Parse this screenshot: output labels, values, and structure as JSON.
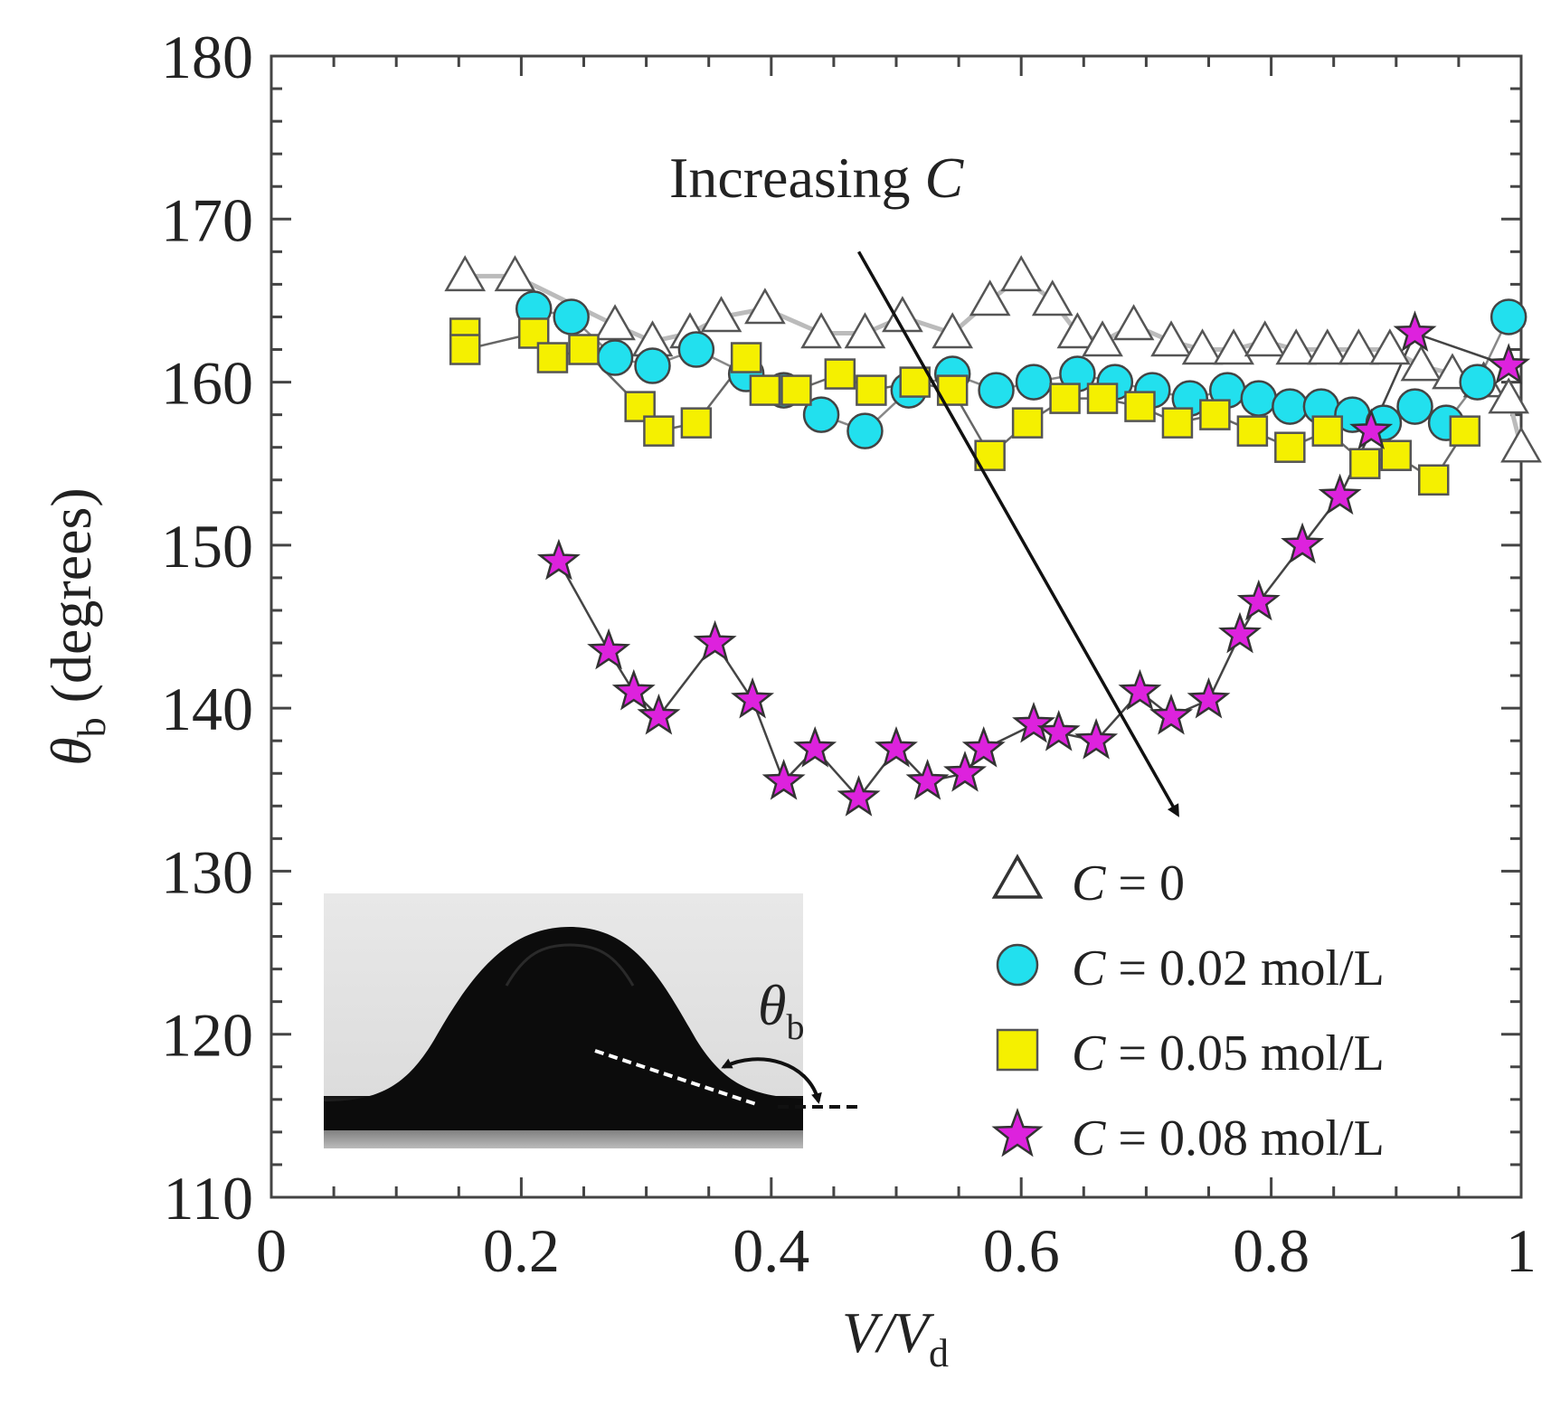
{
  "chart_data": {
    "type": "scatter",
    "xlabel_main": "V/V",
    "xlabel_sub": "d",
    "ylabel_symbol": "θ",
    "ylabel_sub": "b",
    "ylabel_rest": " (degrees)",
    "xlim": [
      0,
      1
    ],
    "ylim": [
      110,
      180
    ],
    "xticks": [
      0,
      0.2,
      0.4,
      0.6,
      0.8,
      1
    ],
    "xtick_labels": [
      "0",
      "0.2",
      "0.4",
      "0.6",
      "0.8",
      "1"
    ],
    "yticks": [
      110,
      120,
      130,
      140,
      150,
      160,
      170,
      180
    ],
    "ytick_labels": [
      "110",
      "120",
      "130",
      "140",
      "150",
      "160",
      "170",
      "180"
    ],
    "annotation": {
      "text": "Increasing ",
      "var": "C",
      "arrow_from": [
        0.47,
        168
      ],
      "arrow_to": [
        0.725,
        133.5
      ]
    },
    "inset": {
      "description": "droplet photograph with contact angle",
      "label_symbol": "θ",
      "label_sub": "b"
    },
    "series": [
      {
        "name": "C = 0",
        "legend_var": "C",
        "legend_rest": " = 0",
        "marker": "triangle",
        "color": "#ffffff",
        "stroke": "#555555",
        "x": [
          0.155,
          0.195,
          0.275,
          0.305,
          0.335,
          0.36,
          0.395,
          0.44,
          0.475,
          0.505,
          0.545,
          0.575,
          0.6,
          0.625,
          0.645,
          0.665,
          0.69,
          0.72,
          0.745,
          0.77,
          0.795,
          0.82,
          0.845,
          0.87,
          0.895,
          0.92,
          0.945,
          0.97,
          0.99,
          1.0
        ],
        "y": [
          166.5,
          166.5,
          163.5,
          162.5,
          163,
          164,
          164.5,
          163,
          163,
          164,
          163,
          165,
          166.5,
          165,
          163,
          162.5,
          163.5,
          162.5,
          162,
          162,
          162.5,
          162,
          162,
          162,
          162,
          161,
          160.5,
          160,
          159,
          156
        ]
      },
      {
        "name": "C = 0.02 mol/L",
        "legend_var": "C",
        "legend_rest": " = 0.02 mol/L",
        "marker": "circle",
        "color": "#22e0ee",
        "stroke": "#444444",
        "x": [
          0.21,
          0.24,
          0.275,
          0.305,
          0.34,
          0.38,
          0.41,
          0.44,
          0.475,
          0.51,
          0.545,
          0.58,
          0.61,
          0.645,
          0.675,
          0.705,
          0.735,
          0.765,
          0.79,
          0.815,
          0.84,
          0.865,
          0.89,
          0.915,
          0.94,
          0.965,
          0.99
        ],
        "y": [
          164.5,
          164,
          161.5,
          161,
          162,
          160.5,
          159.5,
          158,
          157,
          159.5,
          160.5,
          159.5,
          160,
          160.5,
          160,
          159.5,
          159,
          159.5,
          159,
          158.5,
          158.5,
          158,
          157.5,
          158.5,
          157.5,
          160,
          164
        ]
      },
      {
        "name": "C = 0.05 mol/L",
        "legend_var": "C",
        "legend_rest": " = 0.05 mol/L",
        "marker": "square",
        "color": "#f5f000",
        "stroke": "#555555",
        "x": [
          0.155,
          0.155,
          0.21,
          0.225,
          0.25,
          0.295,
          0.31,
          0.34,
          0.38,
          0.395,
          0.42,
          0.455,
          0.48,
          0.515,
          0.545,
          0.575,
          0.605,
          0.635,
          0.665,
          0.695,
          0.725,
          0.755,
          0.785,
          0.815,
          0.845,
          0.875,
          0.9,
          0.93,
          0.955
        ],
        "y": [
          163,
          162,
          163,
          161.5,
          162,
          158.5,
          157,
          157.5,
          161.5,
          159.5,
          159.5,
          160.5,
          159.5,
          160,
          159.5,
          155.5,
          157.5,
          159,
          159,
          158.5,
          157.5,
          158,
          157,
          156,
          157,
          155,
          155.5,
          154,
          157
        ]
      },
      {
        "name": "C = 0.08 mol/L",
        "legend_var": "C",
        "legend_rest": " = 0.08 mol/L",
        "marker": "star",
        "color": "#dd22dd",
        "stroke": "#333333",
        "x": [
          0.23,
          0.27,
          0.29,
          0.31,
          0.355,
          0.385,
          0.41,
          0.435,
          0.47,
          0.5,
          0.525,
          0.555,
          0.57,
          0.61,
          0.63,
          0.66,
          0.695,
          0.72,
          0.75,
          0.775,
          0.79,
          0.825,
          0.855,
          0.88,
          0.915,
          0.99
        ],
        "y": [
          149,
          143.5,
          141,
          139.5,
          144,
          140.5,
          135.5,
          137.5,
          134.5,
          137.5,
          135.5,
          136,
          137.5,
          139,
          138.5,
          138,
          141,
          139.5,
          140.5,
          144.5,
          146.5,
          150,
          153,
          157,
          163,
          161
        ]
      }
    ]
  }
}
